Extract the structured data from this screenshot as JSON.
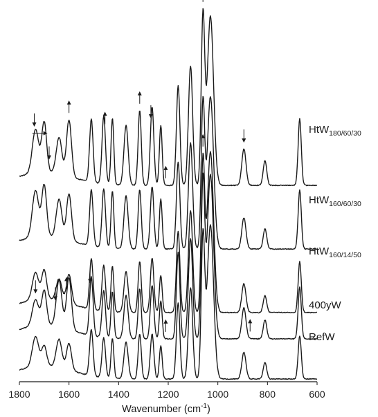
{
  "chart_data": {
    "type": "line",
    "title": "",
    "xlabel": "Wavenumber (cm",
    "xlabel_sup": "-1",
    "xlabel_close": ")",
    "ylabel": "",
    "xlim": [
      1800,
      600
    ],
    "x_reversed": true,
    "x_ticks": [
      1800,
      1600,
      1400,
      1200,
      1000,
      800,
      600
    ],
    "x_tick_labels": [
      "1800",
      "1600",
      "1400",
      "1200",
      "1000",
      "800",
      "600"
    ],
    "grid": false,
    "stacked_offset": true,
    "peak_positions": [
      1735,
      1700,
      1640,
      1600,
      1510,
      1460,
      1425,
      1370,
      1315,
      1265,
      1230,
      1160,
      1110,
      1060,
      1030,
      895,
      810,
      670
    ],
    "series": [
      {
        "name": "HtW",
        "name_sub": "180/60/30",
        "peak_heights": [
          0.26,
          0.3,
          0.22,
          0.34,
          0.38,
          0.41,
          0.4,
          0.36,
          0.45,
          0.47,
          0.36,
          0.6,
          0.72,
          1.0,
          1.02,
          0.22,
          0.15,
          0.4
        ],
        "arrows": [
          {
            "x": 1740,
            "dir": "down"
          },
          {
            "x": 1680,
            "dir": "down"
          },
          {
            "x": 1720,
            "dir": "right"
          },
          {
            "x": 1600,
            "dir": "up"
          },
          {
            "x": 1455,
            "dir": "up"
          },
          {
            "x": 1315,
            "dir": "up"
          },
          {
            "x": 1270,
            "dir": "down"
          },
          {
            "x": 1210,
            "dir": "up"
          },
          {
            "x": 1060,
            "dir": "up"
          },
          {
            "x": 895,
            "dir": "down"
          }
        ]
      },
      {
        "name": "HtW",
        "name_sub": "160/60/30",
        "peak_heights": [
          0.3,
          0.33,
          0.25,
          0.3,
          0.36,
          0.38,
          0.37,
          0.34,
          0.38,
          0.4,
          0.32,
          0.56,
          0.68,
          0.92,
          0.98,
          0.2,
          0.13,
          0.38
        ],
        "arrows": []
      },
      {
        "name": "HtW",
        "name_sub": "160/14/50",
        "peak_heights": [
          0.16,
          0.17,
          0.13,
          0.17,
          0.3,
          0.27,
          0.27,
          0.24,
          0.3,
          0.32,
          0.22,
          0.48,
          0.6,
          0.88,
          0.95,
          0.17,
          0.1,
          0.3
        ],
        "arrows": [
          {
            "x": 1060,
            "dir": "up"
          }
        ]
      },
      {
        "name": "400yW",
        "name_sub": "",
        "peak_heights": [
          0.15,
          0.2,
          0.27,
          0.3,
          0.34,
          0.27,
          0.27,
          0.25,
          0.29,
          0.31,
          0.22,
          0.5,
          0.58,
          0.9,
          0.95,
          0.18,
          0.11,
          0.3
        ],
        "arrows": [
          {
            "x": 1735,
            "dir": "down"
          },
          {
            "x": 1655,
            "dir": "down"
          },
          {
            "x": 1610,
            "dir": "up"
          },
          {
            "x": 1515,
            "dir": "down"
          },
          {
            "x": 1210,
            "dir": "up"
          },
          {
            "x": 870,
            "dir": "up"
          }
        ]
      },
      {
        "name": "RefW",
        "name_sub": "",
        "peak_heights": [
          0.18,
          0.12,
          0.17,
          0.16,
          0.28,
          0.24,
          0.24,
          0.22,
          0.27,
          0.27,
          0.2,
          0.46,
          0.55,
          0.85,
          0.93,
          0.16,
          0.1,
          0.26
        ],
        "arrows": []
      }
    ]
  }
}
